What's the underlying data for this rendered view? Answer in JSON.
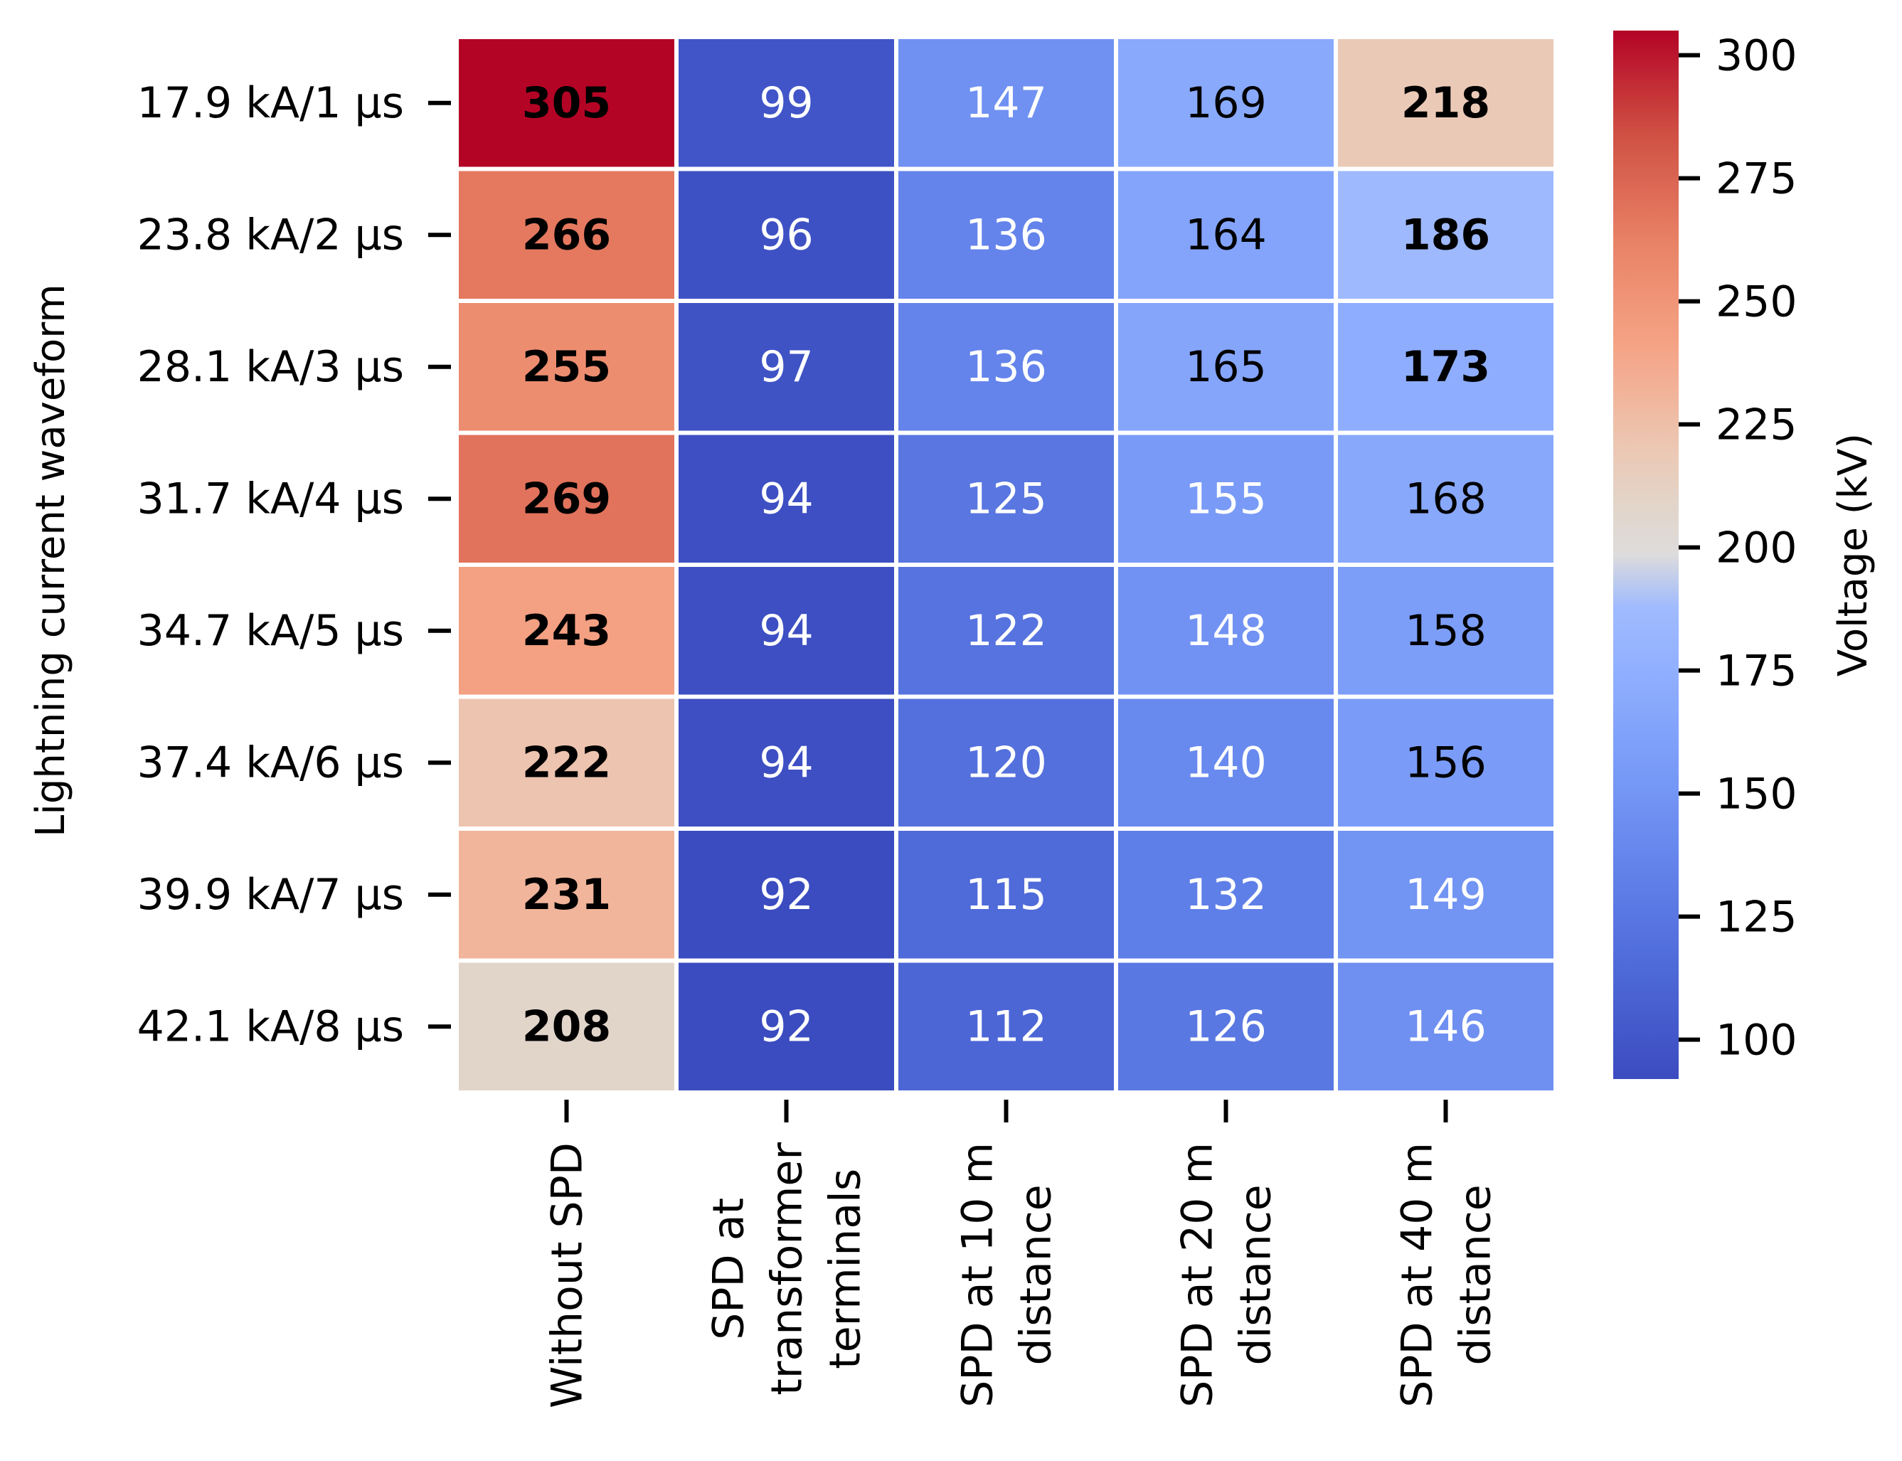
{
  "chart_data": {
    "type": "heatmap",
    "title": "",
    "ylabel": "Lightning current waveform",
    "xlabel": "",
    "rows": [
      "17.9 kA/1 μs",
      "23.8 kA/2 μs",
      "28.1 kA/3 μs",
      "31.7 kA/4 μs",
      "34.7 kA/5 μs",
      "37.4 kA/6 μs",
      "39.9 kA/7 μs",
      "42.1 kA/8 μs"
    ],
    "columns": [
      [
        "Without SPD"
      ],
      [
        "SPD at",
        "transformer",
        "terminals"
      ],
      [
        "SPD at 10 m",
        "distance"
      ],
      [
        "SPD at 20 m",
        "distance"
      ],
      [
        "SPD at 40 m",
        "distance"
      ]
    ],
    "values": [
      [
        305,
        99,
        147,
        169,
        218
      ],
      [
        266,
        96,
        136,
        164,
        186
      ],
      [
        255,
        97,
        136,
        165,
        173
      ],
      [
        269,
        94,
        125,
        155,
        168
      ],
      [
        243,
        94,
        122,
        148,
        158
      ],
      [
        222,
        94,
        120,
        140,
        156
      ],
      [
        231,
        92,
        115,
        132,
        149
      ],
      [
        208,
        92,
        112,
        126,
        146
      ]
    ],
    "bold_cells": [
      [
        0,
        0
      ],
      [
        1,
        0
      ],
      [
        2,
        0
      ],
      [
        3,
        0
      ],
      [
        4,
        0
      ],
      [
        5,
        0
      ],
      [
        6,
        0
      ],
      [
        7,
        0
      ],
      [
        0,
        4
      ],
      [
        1,
        4
      ],
      [
        2,
        4
      ]
    ],
    "colorbar": {
      "label": "Voltage (kV)",
      "range": [
        92,
        305
      ],
      "ticks": [
        100,
        125,
        150,
        175,
        200,
        225,
        250,
        275,
        300
      ],
      "colormap": "coolwarm"
    }
  }
}
